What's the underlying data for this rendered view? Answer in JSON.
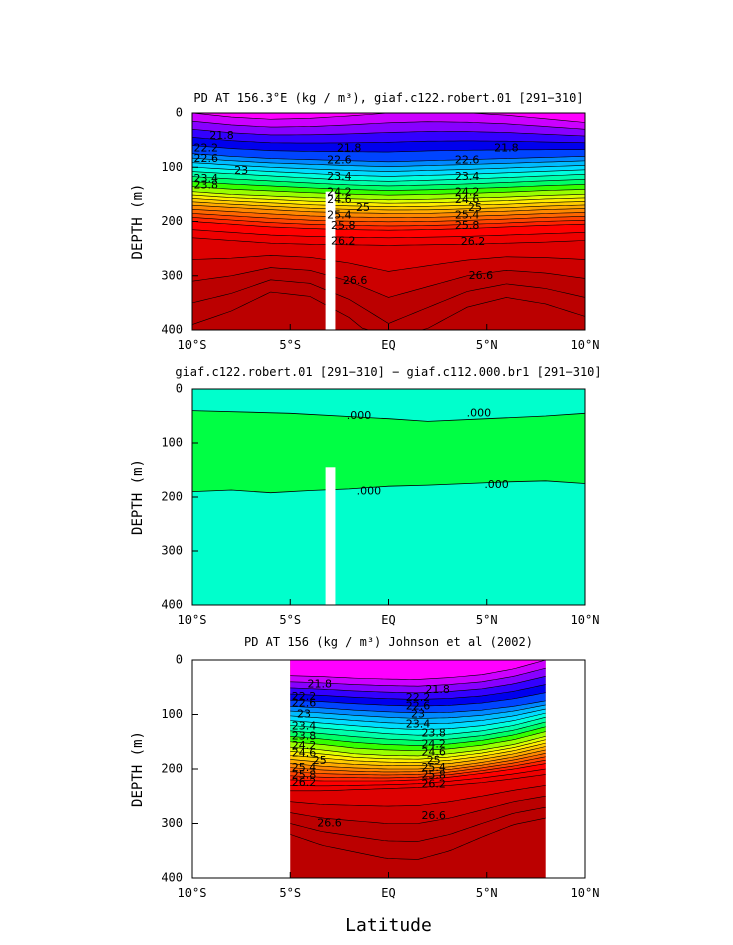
{
  "chart_data": [
    {
      "type": "contour",
      "title": "PD AT 156.3°E (kg / m³), giaf.c122.robert.01 [291−310]",
      "xlabel": "",
      "ylabel": "DEPTH (m)",
      "xlim": [
        -10,
        10
      ],
      "ylim": [
        400,
        0
      ],
      "xticks": [
        -10,
        -5,
        0,
        5,
        10
      ],
      "xtick_labels": [
        "10°S",
        "5°S",
        "EQ",
        "5°N",
        "10°N"
      ],
      "yticks": [
        0,
        100,
        200,
        300,
        400
      ],
      "ytick_labels": [
        "0",
        "100",
        "200",
        "300",
        "400"
      ],
      "data_coverage": [
        -10,
        10
      ],
      "missing_bar_x": [
        -3.2,
        -2.7
      ],
      "missing_bar_top": 145,
      "contour_levels": {
        "start": 21.6,
        "step": 0.2,
        "end": 27.0
      },
      "isopycnals": [
        {
          "value": 21.8,
          "depth": [
            15,
            22,
            26,
            25,
            22,
            18,
            16,
            17,
            20,
            25,
            30
          ]
        },
        {
          "value": 22.6,
          "depth": [
            75,
            80,
            84,
            86,
            88,
            90,
            88,
            86,
            84,
            82,
            80
          ]
        },
        {
          "value": 23.4,
          "depth": [
            108,
            112,
            116,
            120,
            124,
            126,
            124,
            122,
            119,
            116,
            113
          ]
        },
        {
          "value": 24.2,
          "depth": [
            145,
            150,
            153,
            156,
            158,
            160,
            159,
            157,
            155,
            152,
            150
          ]
        },
        {
          "value": 25.0,
          "depth": [
            170,
            174,
            178,
            182,
            184,
            185,
            185,
            183,
            181,
            178,
            176
          ]
        },
        {
          "value": 25.8,
          "depth": [
            200,
            205,
            210,
            213,
            215,
            216,
            215,
            213,
            210,
            207,
            205
          ]
        },
        {
          "value": 26.2,
          "depth": [
            230,
            235,
            240,
            242,
            243,
            244,
            243,
            242,
            240,
            238,
            235
          ]
        },
        {
          "value": 26.6,
          "depth": [
            310,
            300,
            285,
            290,
            310,
            340,
            320,
            300,
            290,
            295,
            305
          ]
        }
      ],
      "contour_labels": [
        {
          "text": "21.8",
          "x": -8.5,
          "y": 42
        },
        {
          "text": "21.8",
          "x": -2,
          "y": 65
        },
        {
          "text": "21.8",
          "x": 6,
          "y": 65
        },
        {
          "text": "22.2",
          "x": -9.3,
          "y": 65
        },
        {
          "text": "22.6",
          "x": -9.3,
          "y": 85
        },
        {
          "text": "23",
          "x": -7.5,
          "y": 107
        },
        {
          "text": "23.4",
          "x": -9.3,
          "y": 122
        },
        {
          "text": "23.8",
          "x": -9.3,
          "y": 134
        },
        {
          "text": "22.6",
          "x": -2.5,
          "y": 88
        },
        {
          "text": "23.4",
          "x": -2.5,
          "y": 118
        },
        {
          "text": "24.2",
          "x": -2.5,
          "y": 147
        },
        {
          "text": "24.6",
          "x": -2.5,
          "y": 160
        },
        {
          "text": "25",
          "x": -1.3,
          "y": 175
        },
        {
          "text": "25.4",
          "x": -2.5,
          "y": 189
        },
        {
          "text": "25.8",
          "x": -2.3,
          "y": 208
        },
        {
          "text": "26.2",
          "x": -2.3,
          "y": 237
        },
        {
          "text": "26.6",
          "x": -1.7,
          "y": 310
        },
        {
          "text": "22.6",
          "x": 4,
          "y": 88
        },
        {
          "text": "23.4",
          "x": 4,
          "y": 118
        },
        {
          "text": "24.2",
          "x": 4,
          "y": 147
        },
        {
          "text": "24.6",
          "x": 4,
          "y": 160
        },
        {
          "text": "25",
          "x": 4.4,
          "y": 175
        },
        {
          "text": "25.4",
          "x": 4,
          "y": 189
        },
        {
          "text": "25.8",
          "x": 4,
          "y": 208
        },
        {
          "text": "26.2",
          "x": 4.3,
          "y": 238
        },
        {
          "text": "26.6",
          "x": 4.7,
          "y": 300
        }
      ]
    },
    {
      "type": "contour",
      "title": "giaf.c122.robert.01 [291−310] − giaf.c112.000.br1 [291−310]",
      "xlabel": "",
      "ylabel": "DEPTH (m)",
      "xlim": [
        -10,
        10
      ],
      "ylim": [
        400,
        0
      ],
      "xticks": [
        -10,
        -5,
        0,
        5,
        10
      ],
      "xtick_labels": [
        "10°S",
        "5°S",
        "EQ",
        "5°N",
        "10°N"
      ],
      "yticks": [
        0,
        100,
        200,
        300,
        400
      ],
      "ytick_labels": [
        "0",
        "100",
        "200",
        "300",
        "400"
      ],
      "missing_bar_x": [
        -3.2,
        -2.7
      ],
      "missing_bar_top": 145,
      "zero_line_upper": {
        "x": [
          -10,
          -5,
          0,
          2,
          5,
          8,
          10
        ],
        "depth": [
          40,
          45,
          55,
          60,
          55,
          50,
          45
        ]
      },
      "zero_line_lower": {
        "x": [
          -10,
          -8,
          -6,
          -4,
          -2,
          0,
          2,
          4,
          6,
          8,
          10
        ],
        "depth": [
          190,
          187,
          192,
          188,
          185,
          180,
          178,
          175,
          172,
          170,
          175
        ]
      },
      "contour_labels": [
        {
          "text": ".000",
          "x": -1.5,
          "y": 50
        },
        {
          "text": ".000",
          "x": 4.6,
          "y": 45
        },
        {
          "text": ".000",
          "x": -1.0,
          "y": 190
        },
        {
          "text": ".000",
          "x": 5.5,
          "y": 178
        }
      ]
    },
    {
      "type": "contour",
      "title": "PD AT 156 (kg / m³) Johnson et al (2002)",
      "xlabel": "Latitude",
      "ylabel": "DEPTH (m)",
      "xlim": [
        -10,
        10
      ],
      "ylim": [
        400,
        0
      ],
      "xticks": [
        -10,
        -5,
        0,
        5,
        10
      ],
      "xtick_labels": [
        "10°S",
        "5°S",
        "EQ",
        "5°N",
        "10°N"
      ],
      "yticks": [
        0,
        100,
        200,
        300,
        400
      ],
      "ytick_labels": [
        "0",
        "100",
        "200",
        "300",
        "400"
      ],
      "data_coverage": [
        -5,
        8
      ],
      "contour_levels": {
        "start": 21.6,
        "step": 0.2,
        "end": 27.0
      },
      "isopycnals": [
        {
          "value": 21.8,
          "depth": [
            40,
            42,
            45,
            47,
            48,
            45,
            40,
            30,
            15
          ]
        },
        {
          "value": 22.6,
          "depth": [
            85,
            88,
            92,
            95,
            97,
            96,
            92,
            85,
            75
          ]
        },
        {
          "value": 23.4,
          "depth": [
            120,
            125,
            130,
            135,
            138,
            136,
            130,
            120,
            105
          ]
        },
        {
          "value": 24.2,
          "depth": [
            160,
            165,
            172,
            175,
            176,
            172,
            165,
            155,
            140
          ]
        },
        {
          "value": 25.0,
          "depth": [
            190,
            195,
            198,
            200,
            200,
            196,
            188,
            178,
            165
          ]
        },
        {
          "value": 25.8,
          "depth": [
            220,
            222,
            222,
            222,
            220,
            215,
            208,
            200,
            190
          ]
        },
        {
          "value": 26.2,
          "depth": [
            240,
            240,
            238,
            236,
            234,
            230,
            225,
            218,
            210
          ]
        },
        {
          "value": 26.6,
          "depth": [
            280,
            290,
            295,
            300,
            300,
            290,
            275,
            260,
            250
          ]
        }
      ],
      "contour_labels": [
        {
          "text": "21.8",
          "x": -3.5,
          "y": 45
        },
        {
          "text": "22.2",
          "x": -4.3,
          "y": 68
        },
        {
          "text": "22.6",
          "x": -4.3,
          "y": 80
        },
        {
          "text": "23",
          "x": -4.3,
          "y": 100
        },
        {
          "text": "23.4",
          "x": -4.3,
          "y": 122
        },
        {
          "text": "23.8",
          "x": -4.3,
          "y": 140
        },
        {
          "text": "24.2",
          "x": -4.3,
          "y": 158
        },
        {
          "text": "24.6",
          "x": -4.3,
          "y": 172
        },
        {
          "text": "25",
          "x": -3.5,
          "y": 185
        },
        {
          "text": "25.4",
          "x": -4.3,
          "y": 198
        },
        {
          "text": "25.8",
          "x": -4.3,
          "y": 212
        },
        {
          "text": "26.2",
          "x": -4.3,
          "y": 226
        },
        {
          "text": "26.6",
          "x": -3.0,
          "y": 300
        },
        {
          "text": "21.8",
          "x": 2.5,
          "y": 55
        },
        {
          "text": "22.2",
          "x": 1.5,
          "y": 70
        },
        {
          "text": "22.6",
          "x": 1.5,
          "y": 85
        },
        {
          "text": "23",
          "x": 1.5,
          "y": 100
        },
        {
          "text": "23.4",
          "x": 1.5,
          "y": 118
        },
        {
          "text": "23.8",
          "x": 2.3,
          "y": 135
        },
        {
          "text": "24.2",
          "x": 2.3,
          "y": 155
        },
        {
          "text": "24.6",
          "x": 2.3,
          "y": 170
        },
        {
          "text": "25",
          "x": 2.3,
          "y": 185
        },
        {
          "text": "25.4",
          "x": 2.3,
          "y": 198
        },
        {
          "text": "25.8",
          "x": 2.3,
          "y": 212
        },
        {
          "text": "26.2",
          "x": 2.3,
          "y": 228
        },
        {
          "text": "26.6",
          "x": 2.3,
          "y": 286
        }
      ]
    }
  ],
  "colors": {
    "density_ramp": [
      "#ff00ff",
      "#cc00ff",
      "#8800ff",
      "#3300ff",
      "#0000ee",
      "#0044ff",
      "#0088ff",
      "#00bbff",
      "#00ddff",
      "#00ffdd",
      "#00ffaa",
      "#00ff66",
      "#33ff00",
      "#99ff00",
      "#ddff00",
      "#ffee00",
      "#ffcc00",
      "#ffaa00",
      "#ff8800",
      "#ff6600",
      "#ff4400",
      "#ff2200",
      "#ff0000",
      "#ee0000",
      "#dd0000",
      "#cc0000",
      "#bb0000"
    ],
    "diff_positive": "#00ff44",
    "diff_negative": "#00ffcc",
    "missing": "#ffffff",
    "land_gray": "#bbbbbb"
  }
}
